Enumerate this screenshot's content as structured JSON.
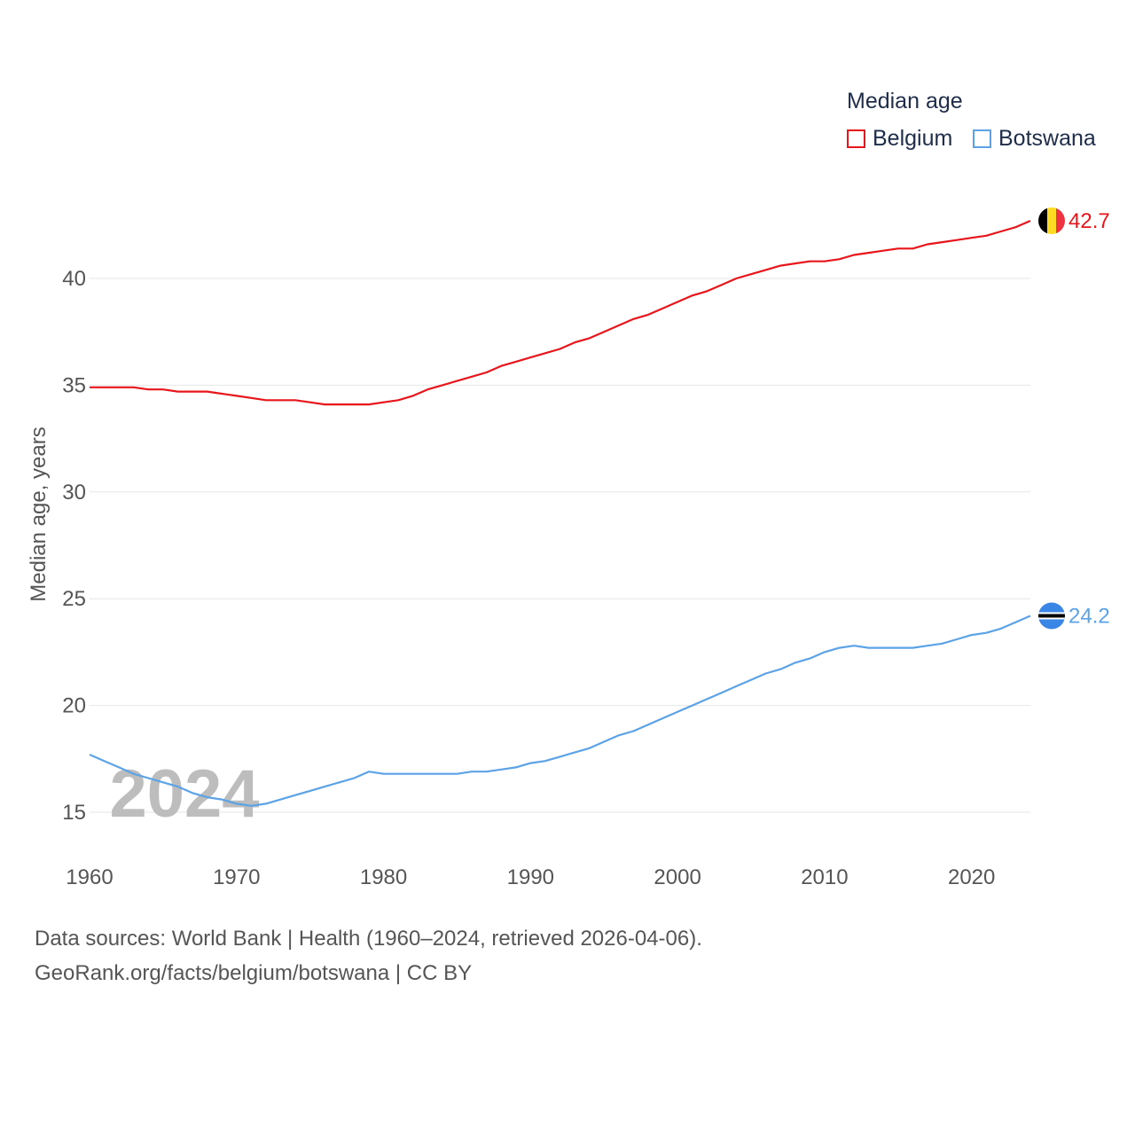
{
  "chart_data": {
    "type": "line",
    "legend_title": "Median age",
    "ylabel": "Median age, years",
    "xlabel": "",
    "xlim": [
      1960,
      2024
    ],
    "ylim": [
      13,
      44
    ],
    "y_ticks": [
      15,
      20,
      25,
      30,
      35,
      40
    ],
    "x_ticks": [
      1960,
      1970,
      1980,
      1990,
      2000,
      2010,
      2020
    ],
    "year_watermark": "2024",
    "x": [
      1960,
      1961,
      1962,
      1963,
      1964,
      1965,
      1966,
      1967,
      1968,
      1969,
      1970,
      1971,
      1972,
      1973,
      1974,
      1975,
      1976,
      1977,
      1978,
      1979,
      1980,
      1981,
      1982,
      1983,
      1984,
      1985,
      1986,
      1987,
      1988,
      1989,
      1990,
      1991,
      1992,
      1993,
      1994,
      1995,
      1996,
      1997,
      1998,
      1999,
      2000,
      2001,
      2002,
      2003,
      2004,
      2005,
      2006,
      2007,
      2008,
      2009,
      2010,
      2011,
      2012,
      2013,
      2014,
      2015,
      2016,
      2017,
      2018,
      2019,
      2020,
      2021,
      2022,
      2023,
      2024
    ],
    "series": [
      {
        "name": "Belgium",
        "color": "#e8161b",
        "end_label": "42.7",
        "flag": "belgium-flag",
        "values": [
          34.9,
          34.9,
          34.9,
          34.9,
          34.8,
          34.8,
          34.7,
          34.7,
          34.7,
          34.6,
          34.5,
          34.4,
          34.3,
          34.3,
          34.3,
          34.2,
          34.1,
          34.1,
          34.1,
          34.1,
          34.2,
          34.3,
          34.5,
          34.8,
          35.0,
          35.2,
          35.4,
          35.6,
          35.9,
          36.1,
          36.3,
          36.5,
          36.7,
          37.0,
          37.2,
          37.5,
          37.8,
          38.1,
          38.3,
          38.6,
          38.9,
          39.2,
          39.4,
          39.7,
          40.0,
          40.2,
          40.4,
          40.6,
          40.7,
          40.8,
          40.8,
          40.9,
          41.1,
          41.2,
          41.3,
          41.4,
          41.4,
          41.6,
          41.7,
          41.8,
          41.9,
          42.0,
          42.2,
          42.4,
          42.7
        ]
      },
      {
        "name": "Botswana",
        "color": "#5ba3e6",
        "end_label": "24.2",
        "flag": "botswana-flag",
        "values": [
          17.7,
          17.4,
          17.1,
          16.8,
          16.6,
          16.4,
          16.2,
          15.9,
          15.7,
          15.6,
          15.4,
          15.3,
          15.4,
          15.6,
          15.8,
          16.0,
          16.2,
          16.4,
          16.6,
          16.9,
          16.8,
          16.8,
          16.8,
          16.8,
          16.8,
          16.8,
          16.9,
          16.9,
          17.0,
          17.1,
          17.3,
          17.4,
          17.6,
          17.8,
          18.0,
          18.3,
          18.6,
          18.8,
          19.1,
          19.4,
          19.7,
          20.0,
          20.3,
          20.6,
          20.9,
          21.2,
          21.5,
          21.7,
          22.0,
          22.2,
          22.5,
          22.7,
          22.8,
          22.7,
          22.7,
          22.7,
          22.7,
          22.8,
          22.9,
          23.1,
          23.3,
          23.4,
          23.6,
          23.9,
          24.2
        ]
      }
    ]
  },
  "footer": {
    "source_line": "Data sources: World Bank | Health (1960–2024, retrieved 2026-04-06).",
    "credit_line": "GeoRank.org/facts/belgium/botswana | CC BY"
  }
}
